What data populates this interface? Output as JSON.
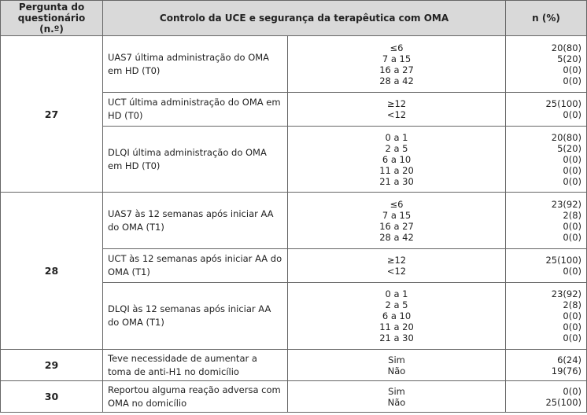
{
  "header": {
    "question": "Pergunta do questionário (n.º)",
    "control": "Controlo da UCE e segurança da terapêutica com OMA",
    "n": "n (%)"
  },
  "groups": [
    {
      "number": "27",
      "items": [
        {
          "label": "UAS7 última administração do OMA em HD (T0)",
          "options": [
            "≤6",
            "7 a 15",
            "16 a 27",
            "28 a 42"
          ],
          "values": [
            "20(80)",
            "5(20)",
            "0(0)",
            "0(0)"
          ]
        },
        {
          "label": "UCT última administração do OMA em HD (T0)",
          "options": [
            "≥12",
            "<12"
          ],
          "values": [
            "25(100)",
            "0(0)"
          ]
        },
        {
          "label": "DLQI última administração do OMA em HD (T0)",
          "options": [
            "0 a 1",
            "2 a 5",
            "6 a 10",
            "11 a 20",
            "21 a 30"
          ],
          "values": [
            "20(80)",
            "5(20)",
            "0(0)",
            "0(0)",
            "0(0)"
          ]
        }
      ]
    },
    {
      "number": "28",
      "items": [
        {
          "label": "UAS7 às 12 semanas após iniciar AA do OMA (T1)",
          "options": [
            "≤6",
            "7 a 15",
            "16 a 27",
            "28 a 42"
          ],
          "values": [
            "23(92)",
            "2(8)",
            "0(0)",
            "0(0)"
          ]
        },
        {
          "label": "UCT às 12 semanas após iniciar AA do OMA (T1)",
          "options": [
            "≥12",
            "<12"
          ],
          "values": [
            "25(100)",
            "0(0)"
          ]
        },
        {
          "label": "DLQI às 12 semanas após iniciar AA do OMA (T1)",
          "options": [
            "0 a 1",
            "2 a 5",
            "6 a 10",
            "11 a 20",
            "21 a 30"
          ],
          "values": [
            "23(92)",
            "2(8)",
            "0(0)",
            "0(0)",
            "0(0)"
          ]
        }
      ]
    },
    {
      "number": "29",
      "items": [
        {
          "label": "Teve necessidade de aumentar a toma de anti-H1 no domicílio",
          "options": [
            "Sim",
            "Não"
          ],
          "values": [
            "6(24)",
            "19(76)"
          ]
        }
      ]
    },
    {
      "number": "30",
      "items": [
        {
          "label": "Reportou alguma reação adversa com OMA no domicílio",
          "options": [
            "Sim",
            "Não"
          ],
          "values": [
            "0(0)",
            "25(100)"
          ]
        }
      ]
    }
  ]
}
